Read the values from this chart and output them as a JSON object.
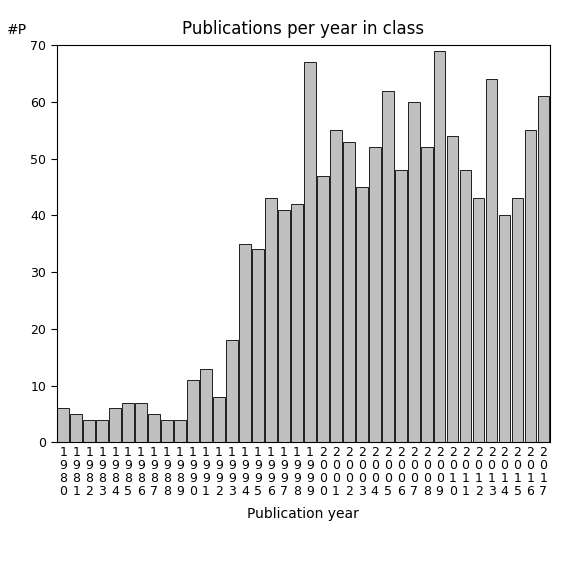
{
  "years": [
    "1980",
    "1981",
    "1982",
    "1983",
    "1984",
    "1985",
    "1986",
    "1987",
    "1988",
    "1989",
    "1990",
    "1991",
    "1992",
    "1993",
    "1994",
    "1995",
    "1996",
    "1997",
    "1998",
    "1999",
    "2000",
    "2001",
    "2002",
    "2003",
    "2004",
    "2005",
    "2006",
    "2007",
    "2008",
    "2009",
    "2010",
    "2011",
    "2012",
    "2013",
    "2014",
    "2015",
    "2016",
    "2017"
  ],
  "values": [
    6,
    5,
    4,
    4,
    6,
    7,
    7,
    5,
    4,
    4,
    11,
    13,
    8,
    18,
    35,
    34,
    43,
    41,
    42,
    67,
    47,
    55,
    53,
    45,
    52,
    62,
    48,
    60,
    52,
    69,
    54,
    48,
    43,
    64,
    40,
    43,
    55,
    61
  ],
  "bar_color": "#c0c0c0",
  "bar_edgecolor": "#000000",
  "title": "Publications per year in class",
  "xlabel": "Publication year",
  "ylabel": "#P",
  "ylim": [
    0,
    70
  ],
  "yticks": [
    0,
    10,
    20,
    30,
    40,
    50,
    60,
    70
  ],
  "title_fontsize": 12,
  "label_fontsize": 10,
  "tick_fontsize": 9,
  "background_color": "#ffffff"
}
